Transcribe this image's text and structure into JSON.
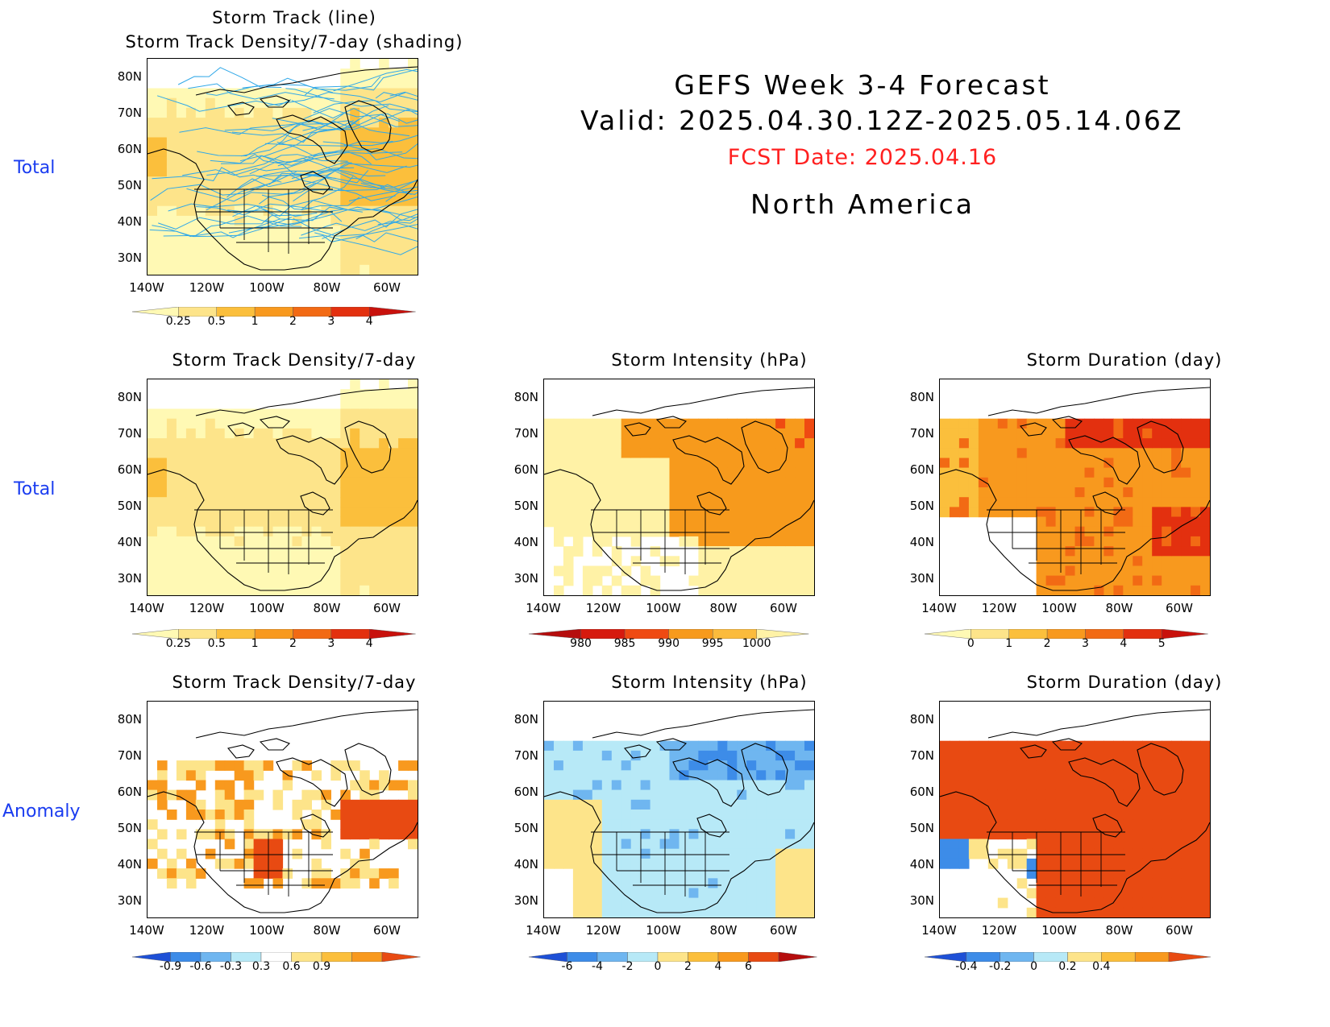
{
  "header": {
    "title": "GEFS Week 3-4 Forecast",
    "valid": "Valid: 2025.04.30.12Z-2025.05.14.06Z",
    "fcst_date": "FCST Date: 2025.04.16",
    "region": "North America"
  },
  "row_labels": {
    "total_top": "Total",
    "total_mid": "Total",
    "anomaly": "Anomaly"
  },
  "titles": {
    "p1a": "Storm Track (line)",
    "p1b": "Storm Track Density/7-day (shading)",
    "p2": "Storm Track Density/7-day",
    "p3": "Storm Intensity (hPa)",
    "p4": "Storm Duration (day)",
    "p5": "Storm Track Density/7-day",
    "p6": "Storm Intensity (hPa)",
    "p7": "Storm Duration (day)"
  },
  "axes": {
    "lat": [
      "80N",
      "70N",
      "60N",
      "50N",
      "40N",
      "30N"
    ],
    "lon": [
      "140W",
      "120W",
      "100W",
      "80W",
      "60W"
    ]
  },
  "colorbars": {
    "density": {
      "ticks": [
        "0.25",
        "0.5",
        "1",
        "2",
        "3",
        "4"
      ],
      "colors": [
        "#fff9b4",
        "#fde48a",
        "#fbbf3c",
        "#f8991e",
        "#f26a14",
        "#e3300f",
        "#c8110c"
      ]
    },
    "intensity": {
      "ticks": [
        "980",
        "985",
        "990",
        "995",
        "1000"
      ],
      "colors": [
        "#b50d0d",
        "#d61a0e",
        "#ef4a12",
        "#f79a1c",
        "#fbbb3c",
        "#fff2a6"
      ]
    },
    "duration": {
      "ticks": [
        "0",
        "1",
        "2",
        "3",
        "4",
        "5"
      ],
      "colors": [
        "#fff9b4",
        "#fde48a",
        "#fbbf3c",
        "#f8991e",
        "#f26a14",
        "#e3300f",
        "#c8110c"
      ]
    },
    "density_anom": {
      "ticks": [
        "-0.9",
        "-0.6",
        "-0.3",
        "0.3",
        "0.6",
        "0.9"
      ],
      "colors": [
        "#1e50d6",
        "#3d8ce8",
        "#6fb6f0",
        "#b7e9f7",
        "#ffffff",
        "#fde48a",
        "#fbbf3c",
        "#f8991e",
        "#e84a12"
      ]
    },
    "intensity_anom": {
      "ticks": [
        "-6",
        "-4",
        "-2",
        "0",
        "2",
        "4",
        "6"
      ],
      "colors": [
        "#1e50d6",
        "#3d8ce8",
        "#6fb6f0",
        "#b7e9f7",
        "#fde48a",
        "#fbbf3c",
        "#f8991e",
        "#e84a12",
        "#b50d0d"
      ]
    },
    "duration_anom": {
      "ticks": [
        "-0.4",
        "-0.2",
        "0",
        "0.2",
        "0.4"
      ],
      "colors": [
        "#1e50d6",
        "#3d8ce8",
        "#6fb6f0",
        "#b7e9f7",
        "#fde48a",
        "#fbbf3c",
        "#f8991e",
        "#e84a12"
      ]
    }
  }
}
